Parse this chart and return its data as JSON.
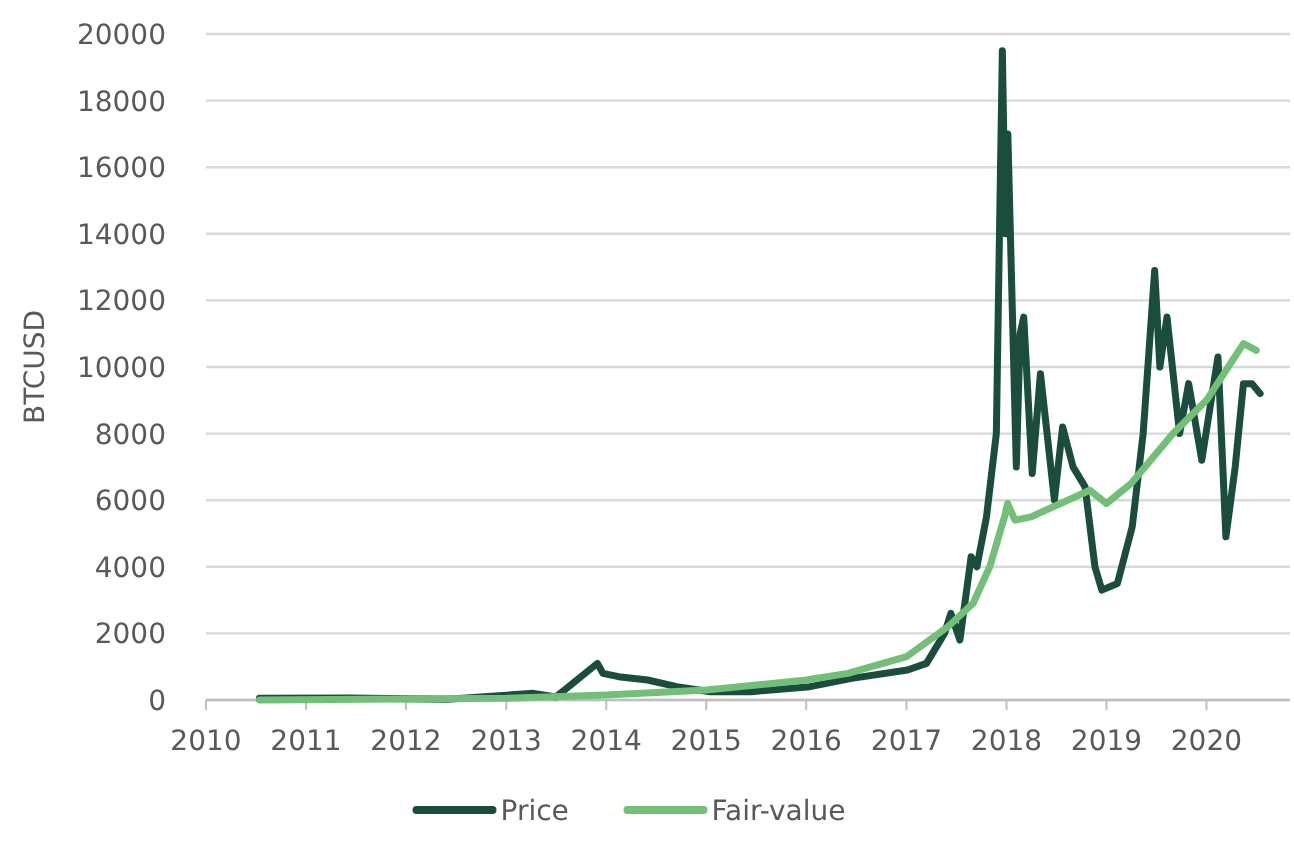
{
  "chart_data": {
    "type": "line",
    "ylabel": "BTCUSD",
    "xlim": [
      "2010-01-01",
      "2020-11-01"
    ],
    "xticks": [
      {
        "value": "2010-01-01",
        "label": "2010"
      },
      {
        "value": "2011-01-01",
        "label": "2011"
      },
      {
        "value": "2012-01-01",
        "label": "2012"
      },
      {
        "value": "2013-01-01",
        "label": "2013"
      },
      {
        "value": "2014-01-01",
        "label": "2014"
      },
      {
        "value": "2015-01-01",
        "label": "2015"
      },
      {
        "value": "2016-01-01",
        "label": "2016"
      },
      {
        "value": "2017-01-01",
        "label": "2017"
      },
      {
        "value": "2018-01-01",
        "label": "2018"
      },
      {
        "value": "2019-01-01",
        "label": "2019"
      },
      {
        "value": "2020-01-01",
        "label": "2020"
      }
    ],
    "ylim": [
      0,
      20000
    ],
    "yticks": [
      0,
      2000,
      4000,
      6000,
      8000,
      10000,
      12000,
      14000,
      16000,
      18000,
      20000
    ],
    "grid": "y",
    "legend": "bottom",
    "line_style": "solid",
    "marker": "none",
    "series": [
      {
        "name": "Price",
        "color": "#1b4d3e",
        "x": [
          "2010-07-15",
          "2011-06-10",
          "2012-06-01",
          "2013-04-10",
          "2013-07-01",
          "2013-11-30",
          "2013-12-20",
          "2014-02-15",
          "2014-06-01",
          "2014-09-15",
          "2015-01-15",
          "2015-06-15",
          "2016-01-15",
          "2016-06-15",
          "2017-01-05",
          "2017-03-15",
          "2017-05-20",
          "2017-06-12",
          "2017-07-15",
          "2017-08-25",
          "2017-09-15",
          "2017-10-20",
          "2017-11-25",
          "2017-12-17",
          "2017-12-28",
          "2018-01-06",
          "2018-02-06",
          "2018-02-20",
          "2018-03-05",
          "2018-04-05",
          "2018-05-05",
          "2018-06-25",
          "2018-07-25",
          "2018-09-01",
          "2018-10-15",
          "2018-11-20",
          "2018-12-15",
          "2019-02-10",
          "2019-04-05",
          "2019-05-15",
          "2019-06-26",
          "2019-07-15",
          "2019-08-10",
          "2019-09-25",
          "2019-10-28",
          "2019-12-15",
          "2020-02-12",
          "2020-03-12",
          "2020-04-15",
          "2020-05-15",
          "2020-06-15",
          "2020-07-15"
        ],
        "values": [
          50,
          60,
          20,
          200,
          90,
          1100,
          800,
          700,
          600,
          400,
          250,
          250,
          400,
          650,
          900,
          1100,
          2000,
          2600,
          1800,
          4300,
          4000,
          5500,
          8000,
          19500,
          14000,
          17000,
          7000,
          11000,
          11500,
          6800,
          9800,
          6000,
          8200,
          7000,
          6400,
          4000,
          3300,
          3500,
          5200,
          8000,
          12900,
          10000,
          11500,
          8000,
          9500,
          7200,
          10300,
          4900,
          7000,
          9500,
          9500,
          9200
        ]
      },
      {
        "name": "Fair-value",
        "color": "#72bf78",
        "x": [
          "2010-07-15",
          "2013-01-01",
          "2014-01-01",
          "2015-01-01",
          "2016-01-01",
          "2016-06-01",
          "2017-01-01",
          "2017-06-01",
          "2017-09-01",
          "2017-11-01",
          "2017-12-25",
          "2018-01-05",
          "2018-02-01",
          "2018-04-01",
          "2018-11-01",
          "2019-01-01",
          "2019-04-01",
          "2019-09-01",
          "2020-01-01",
          "2020-05-15",
          "2020-07-01"
        ],
        "values": [
          0,
          50,
          150,
          300,
          600,
          800,
          1300,
          2200,
          2900,
          4000,
          5500,
          5900,
          5400,
          5500,
          6300,
          5900,
          6500,
          8000,
          9000,
          10700,
          10500
        ]
      }
    ]
  }
}
